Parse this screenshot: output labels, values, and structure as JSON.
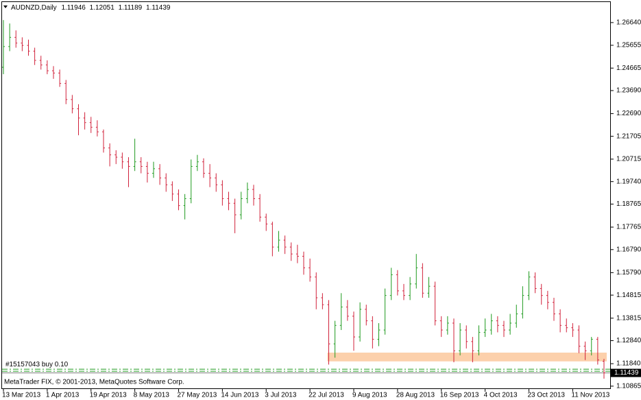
{
  "chart_data": {
    "type": "ohlc",
    "symbol": "AUDNZD,Daily",
    "footer": "MetaTrader FIX, © 2001-2013, MetaQuotes Software Corp.",
    "colors": {
      "up": "#1e9a1e",
      "down": "#d0203a",
      "zone": "#fcc89c",
      "order": "#1e9a1e",
      "price_line": "#808080"
    },
    "ylim": [
      1.108,
      1.2753
    ],
    "yticks": [
      {
        "value": 1.2664,
        "label": "1.26640"
      },
      1.25655,
      1.24665,
      {
        "value": 1.2369,
        "label": "1.23690"
      },
      {
        "value": 1.2269,
        "label": "1.22690"
      },
      1.21705,
      1.20715,
      {
        "value": 1.1974,
        "label": "1.19740"
      },
      1.18765,
      1.17765,
      {
        "value": 1.1679,
        "label": "1.16790"
      },
      {
        "value": 1.1579,
        "label": "1.15790"
      },
      1.14815,
      1.13815,
      {
        "value": 1.1284,
        "label": "1.12840"
      },
      {
        "value": 1.1184,
        "label": "1.11840"
      },
      1.10865
    ],
    "zone": [
      1.1194,
      1.1232
    ],
    "order": {
      "label": "#15157043 buy 0.10",
      "price": 1.116
    },
    "level": 1.1151,
    "categories": [
      "13 Mar 2013",
      null,
      null,
      null,
      null,
      null,
      null,
      "1 Apr 2013",
      null,
      null,
      null,
      null,
      null,
      null,
      "19 Apr 2013",
      null,
      null,
      null,
      null,
      null,
      null,
      "8 May 2013",
      null,
      null,
      null,
      null,
      null,
      null,
      "27 May 2013",
      null,
      null,
      null,
      null,
      null,
      null,
      "14 Jun 2013",
      null,
      null,
      null,
      null,
      null,
      null,
      "3 Jul 2013",
      null,
      null,
      null,
      null,
      null,
      null,
      "22 Jul 2013",
      null,
      null,
      null,
      null,
      null,
      null,
      "9 Aug 2013",
      null,
      null,
      null,
      null,
      null,
      null,
      "28 Aug 2013",
      null,
      null,
      null,
      null,
      null,
      null,
      "16 Sep 2013",
      null,
      null,
      null,
      null,
      null,
      null,
      "4 Oct 2013",
      null,
      null,
      null,
      null,
      null,
      null,
      "23 Oct 2013",
      null,
      null,
      null,
      null,
      null,
      null,
      "11 Nov 2013",
      null,
      null,
      null,
      null,
      null
    ],
    "ohlc": [
      [
        1.247,
        1.2675,
        1.244,
        1.256
      ],
      [
        1.256,
        1.266,
        1.254,
        1.26
      ],
      [
        1.26,
        1.263,
        1.2555,
        1.2575
      ],
      [
        1.2575,
        1.26,
        1.254,
        1.2565
      ],
      [
        1.2565,
        1.259,
        1.252,
        1.254
      ],
      [
        1.254,
        1.2555,
        1.248,
        1.25
      ],
      [
        1.25,
        1.252,
        1.246,
        1.248
      ],
      [
        1.248,
        1.25,
        1.244,
        1.2455
      ],
      [
        1.2455,
        1.2475,
        1.242,
        1.2445
      ],
      [
        1.2445,
        1.246,
        1.2385,
        1.24
      ],
      [
        1.24,
        1.2415,
        1.231,
        1.233
      ],
      [
        1.233,
        1.235,
        1.227,
        1.229
      ],
      [
        1.229,
        1.231,
        1.2175,
        1.225
      ],
      [
        1.225,
        1.2275,
        1.22,
        1.223
      ],
      [
        1.223,
        1.2255,
        1.2185,
        1.221
      ],
      [
        1.221,
        1.224,
        1.217,
        1.219
      ],
      [
        1.219,
        1.22,
        1.21,
        1.212
      ],
      [
        1.212,
        1.214,
        1.204,
        1.209
      ],
      [
        1.209,
        1.211,
        1.205,
        1.208
      ],
      [
        1.208,
        1.21,
        1.203,
        1.206
      ],
      [
        1.206,
        1.208,
        1.195,
        1.204
      ],
      [
        1.204,
        1.216,
        1.202,
        1.206
      ],
      [
        1.206,
        1.208,
        1.201,
        1.204
      ],
      [
        1.204,
        1.206,
        1.197,
        1.201
      ],
      [
        1.201,
        1.206,
        1.199,
        1.203
      ],
      [
        1.203,
        1.205,
        1.196,
        1.199
      ],
      [
        1.199,
        1.201,
        1.193,
        1.196
      ],
      [
        1.196,
        1.1975,
        1.189,
        1.192
      ],
      [
        1.192,
        1.194,
        1.185,
        1.187
      ],
      [
        1.187,
        1.192,
        1.181,
        1.19
      ],
      [
        1.19,
        1.207,
        1.188,
        1.204
      ],
      [
        1.204,
        1.209,
        1.202,
        1.206
      ],
      [
        1.206,
        1.2075,
        1.199,
        1.201
      ],
      [
        1.201,
        1.205,
        1.195,
        1.199
      ],
      [
        1.199,
        1.201,
        1.193,
        1.196
      ],
      [
        1.196,
        1.198,
        1.187,
        1.19
      ],
      [
        1.19,
        1.193,
        1.185,
        1.188
      ],
      [
        1.188,
        1.19,
        1.175,
        1.183
      ],
      [
        1.183,
        1.193,
        1.181,
        1.19
      ],
      [
        1.19,
        1.197,
        1.188,
        1.194
      ],
      [
        1.194,
        1.196,
        1.187,
        1.19
      ],
      [
        1.19,
        1.192,
        1.18,
        1.182
      ],
      [
        1.182,
        1.1835,
        1.176,
        1.179
      ],
      [
        1.179,
        1.18,
        1.165,
        1.169
      ],
      [
        1.169,
        1.176,
        1.167,
        1.172
      ],
      [
        1.172,
        1.174,
        1.166,
        1.169
      ],
      [
        1.169,
        1.171,
        1.163,
        1.166
      ],
      [
        1.166,
        1.17,
        1.162,
        1.165
      ],
      [
        1.165,
        1.167,
        1.157,
        1.16
      ],
      [
        1.16,
        1.164,
        1.154,
        1.156
      ],
      [
        1.156,
        1.158,
        1.142,
        1.147
      ],
      [
        1.147,
        1.149,
        1.142,
        1.144
      ],
      [
        1.144,
        1.146,
        1.118,
        1.127
      ],
      [
        1.127,
        1.137,
        1.121,
        1.135
      ],
      [
        1.135,
        1.149,
        1.133,
        1.143
      ],
      [
        1.143,
        1.146,
        1.137,
        1.139
      ],
      [
        1.139,
        1.141,
        1.124,
        1.13
      ],
      [
        1.13,
        1.145,
        1.128,
        1.142
      ],
      [
        1.142,
        1.144,
        1.135,
        1.137
      ],
      [
        1.137,
        1.139,
        1.125,
        1.129
      ],
      [
        1.129,
        1.136,
        1.126,
        1.133
      ],
      [
        1.133,
        1.151,
        1.131,
        1.148
      ],
      [
        1.148,
        1.16,
        1.146,
        1.157
      ],
      [
        1.157,
        1.159,
        1.148,
        1.15
      ],
      [
        1.15,
        1.153,
        1.146,
        1.148
      ],
      [
        1.148,
        1.156,
        1.146,
        1.153
      ],
      [
        1.153,
        1.166,
        1.151,
        1.16
      ],
      [
        1.16,
        1.162,
        1.147,
        1.149
      ],
      [
        1.149,
        1.156,
        1.147,
        1.152
      ],
      [
        1.152,
        1.154,
        1.135,
        1.137
      ],
      [
        1.137,
        1.139,
        1.13,
        1.133
      ],
      [
        1.133,
        1.139,
        1.131,
        1.136
      ],
      [
        1.136,
        1.138,
        1.119,
        1.124
      ],
      [
        1.124,
        1.136,
        1.122,
        1.133
      ],
      [
        1.133,
        1.135,
        1.125,
        1.128
      ],
      [
        1.128,
        1.13,
        1.119,
        1.124
      ],
      [
        1.124,
        1.135,
        1.122,
        1.132
      ],
      [
        1.132,
        1.138,
        1.13,
        1.133
      ],
      [
        1.133,
        1.14,
        1.131,
        1.137
      ],
      [
        1.137,
        1.139,
        1.132,
        1.135
      ],
      [
        1.135,
        1.137,
        1.13,
        1.133
      ],
      [
        1.133,
        1.14,
        1.131,
        1.136
      ],
      [
        1.136,
        1.144,
        1.134,
        1.14
      ],
      [
        1.14,
        1.152,
        1.138,
        1.148
      ],
      [
        1.148,
        1.1585,
        1.146,
        1.156
      ],
      [
        1.156,
        1.158,
        1.149,
        1.151
      ],
      [
        1.151,
        1.153,
        1.144,
        1.148
      ],
      [
        1.148,
        1.15,
        1.142,
        1.145
      ],
      [
        1.145,
        1.147,
        1.137,
        1.14
      ],
      [
        1.14,
        1.142,
        1.132,
        1.135
      ],
      [
        1.135,
        1.138,
        1.132,
        1.134
      ],
      [
        1.134,
        1.136,
        1.13,
        1.133
      ],
      [
        1.133,
        1.135,
        1.123,
        1.126
      ],
      [
        1.126,
        1.128,
        1.12,
        1.124
      ],
      [
        1.124,
        1.13,
        1.122,
        1.129
      ],
      [
        1.129,
        1.13,
        1.118,
        1.12
      ],
      [
        1.11946,
        1.12051,
        1.11189,
        1.11439
      ]
    ]
  }
}
